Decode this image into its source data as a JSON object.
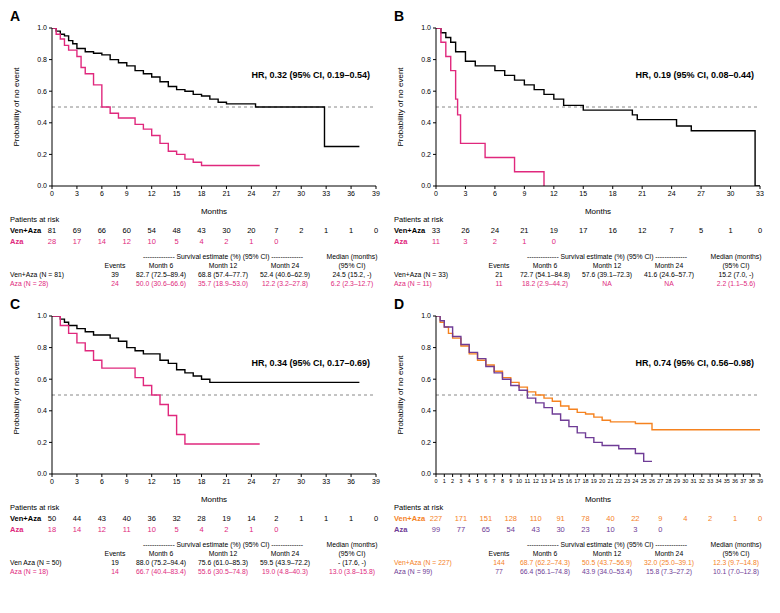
{
  "chart_data": [
    {
      "panel": "A",
      "type": "step",
      "annotation": "HR, 0.32 (95% CI, 0.19–0.54)",
      "xlabel": "Months",
      "ylabel": "Probability of no event",
      "xlim": [
        0,
        39
      ],
      "xticks": [
        0,
        3,
        6,
        9,
        12,
        15,
        18,
        21,
        24,
        27,
        30,
        33,
        36,
        39
      ],
      "ylim": [
        0,
        1
      ],
      "yticks": [
        {
          "value": 0,
          "label": "0.0"
        },
        0.2,
        0.4,
        0.6,
        0.8,
        {
          "value": 1,
          "label": "1.0"
        }
      ],
      "hline": 0.5,
      "series": [
        {
          "name": "Ven+Aza",
          "color": "#000000",
          "x": [
            0,
            0.5,
            1,
            1.5,
            2,
            2.5,
            3,
            4,
            5,
            6,
            7,
            8,
            9,
            10,
            11,
            12,
            13,
            14,
            15,
            16,
            17,
            18,
            19,
            20,
            21,
            24.5,
            32.8,
            37
          ],
          "values": [
            1,
            0.98,
            0.96,
            0.95,
            0.92,
            0.9,
            0.87,
            0.85,
            0.84,
            0.83,
            0.8,
            0.78,
            0.76,
            0.73,
            0.71,
            0.69,
            0.66,
            0.63,
            0.61,
            0.6,
            0.58,
            0.57,
            0.55,
            0.53,
            0.52,
            0.5,
            0.25,
            0.25
          ]
        },
        {
          "name": "Aza",
          "color": "#e0287d",
          "x": [
            0,
            0.5,
            1,
            1.5,
            2,
            3,
            3.5,
            4,
            5,
            6,
            7,
            8,
            10,
            11,
            12,
            13,
            14,
            15,
            16,
            17,
            18,
            25
          ],
          "values": [
            1,
            0.96,
            0.93,
            0.89,
            0.86,
            0.82,
            0.75,
            0.71,
            0.64,
            0.5,
            0.46,
            0.43,
            0.39,
            0.36,
            0.32,
            0.27,
            0.22,
            0.2,
            0.17,
            0.15,
            0.13,
            0.13
          ]
        }
      ],
      "risk_table": {
        "title": "Patients at risk",
        "times": [
          0,
          3,
          6,
          9,
          12,
          15,
          18,
          21,
          24,
          27,
          30,
          33,
          36,
          39
        ],
        "rows": [
          {
            "name": "Ven+Aza",
            "color": "#000000",
            "values": [
              81,
              69,
              66,
              60,
              54,
              48,
              43,
              30,
              20,
              7,
              2,
              1,
              1,
              0
            ]
          },
          {
            "name": "Aza",
            "color": "#e0287d",
            "values": [
              28,
              17,
              14,
              12,
              10,
              5,
              4,
              2,
              1,
              0
            ]
          }
        ]
      },
      "estimates": {
        "span": "-------------- Survival estimate (%) (95% CI) --------------",
        "events": "Events",
        "months": [
          "Month 6",
          "Month 12",
          "Month 24"
        ],
        "median": "Median (months)",
        "ci": "(95% CI)",
        "rows": [
          {
            "label": "Ven+Aza",
            "n": "(N = 81)",
            "color": "#000000",
            "count": 39,
            "values": [
              "82.7 (72.5–89.4)",
              "68.8 (57.4–77.7)",
              "52.4 (40.6–62.9)"
            ],
            "median_value": "24.5 (15.2, -)"
          },
          {
            "label": "Aza",
            "n": "(N = 28)",
            "color": "#e0287d",
            "count": 24,
            "values": [
              "50.0 (30.6–66.6)",
              "35.7 (18.9–53.0)",
              "12.2 (3.2–27.8)"
            ],
            "median_value": "6.2 (2.3–12.7)"
          }
        ]
      }
    },
    {
      "panel": "B",
      "type": "step",
      "annotation": "HR, 0.19 (95% CI, 0.08–0.44)",
      "xlabel": "Months",
      "ylabel": "Probability of no event",
      "xlim": [
        0,
        33
      ],
      "xticks": [
        0,
        3,
        6,
        9,
        12,
        15,
        18,
        21,
        24,
        27,
        30,
        33
      ],
      "ylim": [
        0,
        1
      ],
      "yticks": [
        {
          "value": 0,
          "label": "0.0"
        },
        0.2,
        0.4,
        0.6,
        0.8,
        {
          "value": 1,
          "label": "1.0"
        }
      ],
      "hline": 0.5,
      "series": [
        {
          "name": "Ven+Aza",
          "color": "#000000",
          "x": [
            0,
            0.5,
            1,
            1.5,
            2,
            3,
            4,
            6,
            7,
            8,
            9,
            10,
            11,
            12,
            13,
            15,
            20,
            20.5,
            24.5,
            26,
            32.5,
            33
          ],
          "values": [
            1,
            0.97,
            0.94,
            0.91,
            0.85,
            0.79,
            0.76,
            0.73,
            0.7,
            0.67,
            0.64,
            0.61,
            0.58,
            0.55,
            0.51,
            0.48,
            0.45,
            0.42,
            0.38,
            0.35,
            0,
            0
          ]
        },
        {
          "name": "Aza",
          "color": "#e0287d",
          "x": [
            0,
            0.5,
            1,
            1.5,
            2,
            2.2,
            2.5,
            5,
            8,
            11
          ],
          "values": [
            1,
            0.91,
            0.82,
            0.73,
            0.55,
            0.45,
            0.27,
            0.18,
            0.09,
            0
          ]
        }
      ],
      "risk_table": {
        "title": "Patients at risk",
        "times": [
          0,
          3,
          6,
          9,
          12,
          15,
          18,
          21,
          24,
          27,
          30,
          33
        ],
        "rows": [
          {
            "name": "Ven+Aza",
            "color": "#000000",
            "values": [
              33,
              26,
              24,
              21,
              19,
              17,
              16,
              12,
              7,
              5,
              1,
              0
            ]
          },
          {
            "name": "Aza",
            "color": "#e0287d",
            "values": [
              11,
              3,
              2,
              1,
              0
            ]
          }
        ]
      },
      "estimates": {
        "span": "-------------- Survival estimate (%) (95% CI) --------------",
        "events": "Events",
        "months": [
          "Month 6",
          "Month 12",
          "Month 24"
        ],
        "median": "Median (months)",
        "ci": "(95% CI)",
        "rows": [
          {
            "label": "Ven+Aza",
            "n": "(N = 33)",
            "color": "#000000",
            "count": 21,
            "values": [
              "72.7 (54.1–84.8)",
              "57.6 (39.1–72.3)",
              "41.6 (24.6–57.7)"
            ],
            "median_value": "15.2 (7.0, -)"
          },
          {
            "label": "Aza",
            "n": "(N = 11)",
            "color": "#e0287d",
            "count": 11,
            "values": [
              "18.2 (2.9–44.2)",
              "NA",
              "NA"
            ],
            "median_value": "2.2 (1.1–5.6)"
          }
        ]
      }
    },
    {
      "panel": "C",
      "type": "step",
      "annotation": "HR, 0.34 (95% CI, 0.17–0.69)",
      "xlabel": "Months",
      "ylabel": "Probability of no event",
      "xlim": [
        0,
        39
      ],
      "xticks": [
        0,
        3,
        6,
        9,
        12,
        15,
        18,
        21,
        24,
        27,
        30,
        33,
        36,
        39
      ],
      "ylim": [
        0,
        1
      ],
      "yticks": [
        {
          "value": 0,
          "label": "0.0"
        },
        0.2,
        0.4,
        0.6,
        0.8,
        {
          "value": 1,
          "label": "1.0"
        }
      ],
      "hline": 0.5,
      "series": [
        {
          "name": "Ven+Aza",
          "color": "#000000",
          "x": [
            0,
            1,
            1.5,
            2,
            3,
            4,
            5,
            7,
            8,
            9,
            10,
            11,
            13,
            14,
            15,
            16,
            17,
            18,
            19,
            37
          ],
          "values": [
            1,
            0.98,
            0.96,
            0.94,
            0.92,
            0.9,
            0.88,
            0.86,
            0.84,
            0.8,
            0.78,
            0.76,
            0.72,
            0.7,
            0.66,
            0.64,
            0.62,
            0.6,
            0.58,
            0.58
          ]
        },
        {
          "name": "Aza",
          "color": "#e0287d",
          "x": [
            0,
            1,
            2,
            3,
            4,
            5,
            6,
            10,
            11,
            12,
            13,
            14,
            15,
            16,
            25
          ],
          "values": [
            1,
            0.94,
            0.89,
            0.83,
            0.78,
            0.72,
            0.67,
            0.61,
            0.56,
            0.5,
            0.44,
            0.37,
            0.25,
            0.19,
            0.19
          ]
        }
      ],
      "risk_table": {
        "title": "Patients at risk",
        "times": [
          0,
          3,
          6,
          9,
          12,
          15,
          18,
          21,
          24,
          27,
          30,
          33,
          36,
          39
        ],
        "rows": [
          {
            "name": "Ven+Aza",
            "color": "#000000",
            "values": [
              50,
              44,
              43,
              40,
              36,
              32,
              28,
              19,
              14,
              2,
              1,
              1,
              1,
              0
            ]
          },
          {
            "name": "Aza",
            "color": "#e0287d",
            "values": [
              18,
              14,
              12,
              11,
              10,
              5,
              4,
              2,
              1,
              0
            ]
          }
        ]
      },
      "estimates": {
        "span": "-------------- Survival estimate (%) (95% CI) --------------",
        "events": "Events",
        "months": [
          "Month 6",
          "Month 12",
          "Month 24"
        ],
        "median": "Median (months)",
        "ci": "(95% CI)",
        "rows": [
          {
            "label": "Ven Aza",
            "n": "(N = 50)",
            "color": "#000000",
            "count": 19,
            "values": [
              "88.0 (75.2–94.4)",
              "75.6 (61.0–85.3)",
              "59.5 (43.9–72.2)"
            ],
            "median_value": "- (17.6, -)"
          },
          {
            "label": "Aza",
            "n": "(N = 18)",
            "color": "#e0287d",
            "count": 14,
            "values": [
              "66.7 (40.4–83.4)",
              "55.6 (30.5–74.8)",
              "19.0 (4.8–40.3)"
            ],
            "median_value": "13.0 (3.8–15.8)"
          }
        ]
      }
    },
    {
      "panel": "D",
      "type": "step",
      "annotation": "HR, 0.74 (95% CI, 0.56–0.98)",
      "xlabel": "Months",
      "ylabel": "Probability of no event",
      "xlim": [
        0,
        39
      ],
      "xticks": [
        0,
        1,
        2,
        3,
        4,
        5,
        6,
        7,
        8,
        9,
        10,
        11,
        12,
        13,
        14,
        15,
        16,
        17,
        18,
        19,
        20,
        21,
        22,
        23,
        24,
        25,
        26,
        27,
        28,
        29,
        30,
        31,
        32,
        33,
        34,
        35,
        36,
        37,
        38,
        39
      ],
      "ylim": [
        0,
        1
      ],
      "yticks": [
        {
          "value": 0,
          "label": "0.0"
        },
        0.2,
        0.4,
        0.6,
        0.8,
        {
          "value": 1,
          "label": "1.0"
        }
      ],
      "hline": 0.5,
      "series": [
        {
          "name": "Ven+Aza",
          "color": "#f5821f",
          "x": [
            0,
            0.5,
            1,
            1.5,
            2,
            3,
            4,
            5,
            6,
            7,
            8,
            9,
            10,
            11,
            12,
            13,
            14,
            15,
            16,
            17,
            18,
            19,
            20,
            21,
            24,
            26,
            39
          ],
          "values": [
            1,
            0.96,
            0.93,
            0.89,
            0.86,
            0.81,
            0.76,
            0.72,
            0.69,
            0.65,
            0.61,
            0.58,
            0.55,
            0.52,
            0.5,
            0.48,
            0.46,
            0.43,
            0.41,
            0.39,
            0.38,
            0.36,
            0.34,
            0.33,
            0.32,
            0.28,
            0.28
          ]
        },
        {
          "name": "Aza",
          "color": "#6f3c96",
          "x": [
            0,
            0.5,
            1,
            2,
            3,
            4,
            5,
            6,
            7,
            8,
            9,
            10,
            11,
            12,
            13,
            14,
            15,
            16,
            17,
            18,
            19,
            20,
            22,
            24,
            25,
            26
          ],
          "values": [
            1,
            0.97,
            0.93,
            0.87,
            0.82,
            0.77,
            0.73,
            0.68,
            0.64,
            0.6,
            0.56,
            0.53,
            0.48,
            0.45,
            0.42,
            0.38,
            0.34,
            0.3,
            0.26,
            0.23,
            0.2,
            0.18,
            0.16,
            0.13,
            0.08,
            0.08
          ]
        }
      ],
      "risk_table": {
        "title": "Patients at risk",
        "times": [
          0,
          3,
          6,
          9,
          12,
          15,
          18,
          21,
          24,
          27,
          30,
          33,
          36,
          39
        ],
        "rows": [
          {
            "name": "Ven+Aza",
            "color": "#f5821f",
            "values": [
              227,
              171,
              151,
              128,
              110,
              91,
              78,
              40,
              22,
              9,
              4,
              2,
              1,
              0
            ]
          },
          {
            "name": "Aza",
            "color": "#6f3c96",
            "values": [
              99,
              77,
              65,
              54,
              43,
              30,
              23,
              10,
              3,
              0
            ]
          }
        ]
      },
      "estimates": {
        "span": "-------------- Survival estimate (%) (95% CI) --------------",
        "events": "Events",
        "months": [
          "Month 6",
          "Month 12",
          "Month 24"
        ],
        "median": "Median (months)",
        "ci": "(95% CI)",
        "rows": [
          {
            "label": "Ven+Aza",
            "n": "(N = 227)",
            "color": "#f5821f",
            "count": 144,
            "values": [
              "68.7 (62.2–74.3)",
              "50.5 (43.7–56.9)",
              "32.0 (25.0–39.1)"
            ],
            "median_value": "12.3 (9.7–14.8)"
          },
          {
            "label": "Aza",
            "n": "(N = 99)",
            "color": "#6f3c96",
            "count": 77,
            "values": [
              "66.4 (56.1–74.8)",
              "43.9 (34.0–53.4)",
              "15.8 (7.3–27.2)"
            ],
            "median_value": "10.1 (7.0–12.8)"
          }
        ]
      }
    }
  ]
}
